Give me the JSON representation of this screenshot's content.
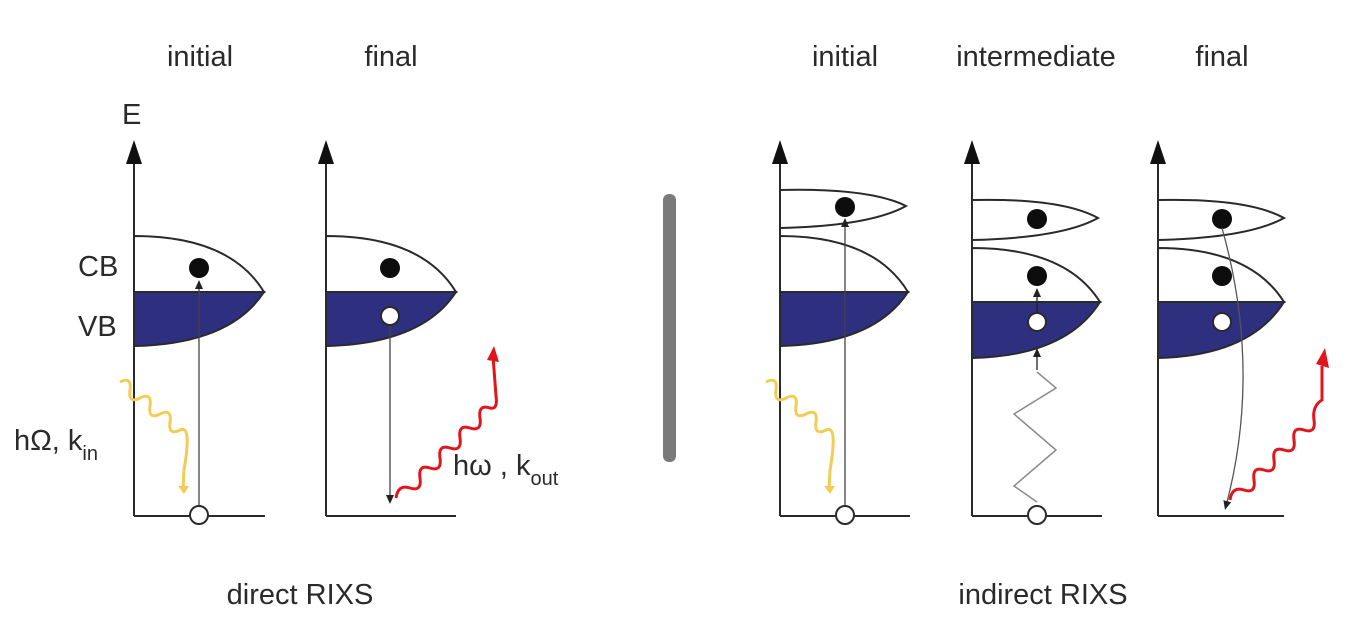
{
  "left_panel": {
    "column_titles": [
      "initial",
      "final"
    ],
    "energy_axis_label": "E",
    "band_labels": {
      "conduction": "CB",
      "valence": "VB"
    },
    "incoming_photon": {
      "symbol": "hΩ, k",
      "subscript": "in"
    },
    "outgoing_photon": {
      "symbol": "hω , k",
      "subscript": "out"
    },
    "caption": "direct RIXS"
  },
  "right_panel": {
    "column_titles": [
      "initial",
      "intermediate",
      "final"
    ],
    "caption": "indirect RIXS"
  },
  "colors": {
    "valence_band_fill": "#2f2f80",
    "incoming_photon": "#f2cc55",
    "outgoing_photon": "#e0161c",
    "divider": "#7a7a7a",
    "axis": "#2a2a2a"
  }
}
